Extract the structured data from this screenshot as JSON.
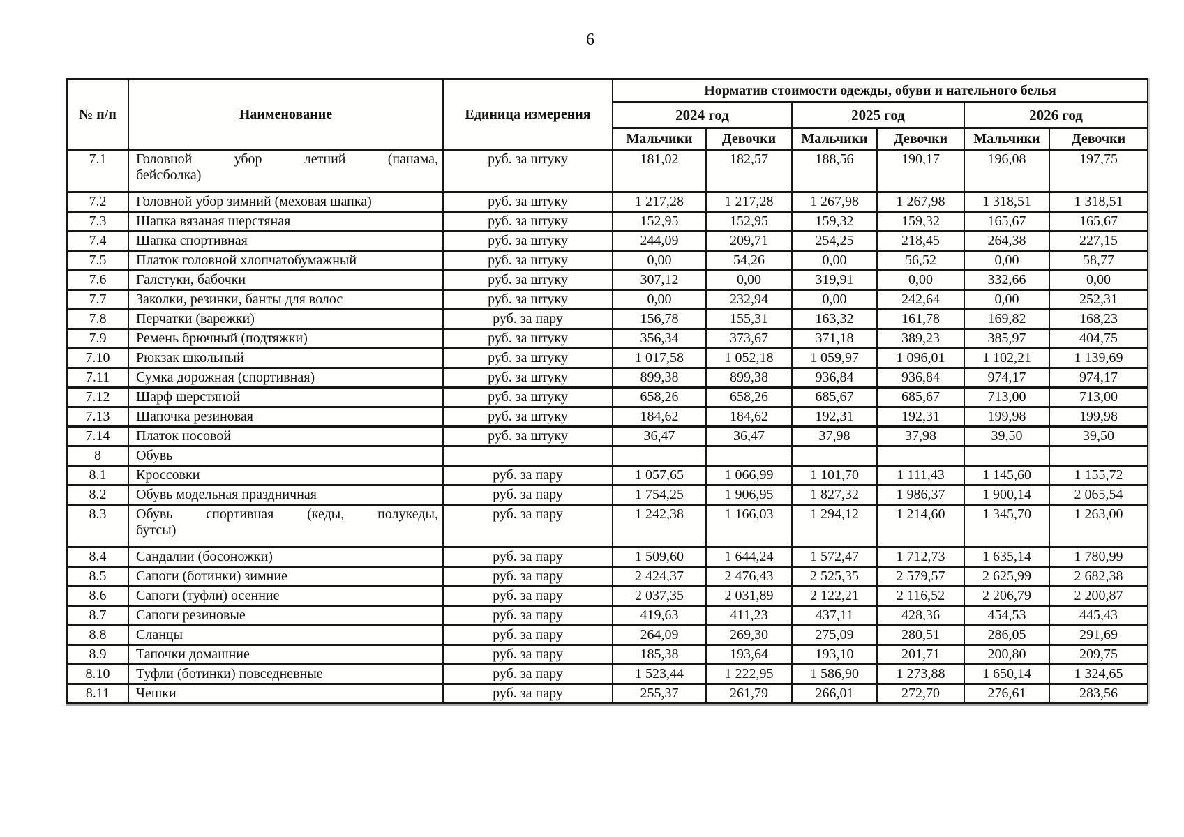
{
  "page": {
    "number": "6"
  },
  "table": {
    "headers": {
      "num": "№ п/п",
      "name": "Наименование",
      "unit": "Единица измерения",
      "norm_group": "Норматив стоимости одежды, обуви и нательного белья",
      "years": [
        "2024 год",
        "2025 год",
        "2026 год"
      ],
      "gender": [
        "Мальчики",
        "Девочки"
      ]
    },
    "units": {
      "per_piece": "руб. за штуку",
      "per_pair": "руб. за пару"
    },
    "rows": [
      {
        "num": "7.1",
        "name": "Головной убор летний (панама,\nбейсболка)",
        "justify": true,
        "unit": "руб. за штуку",
        "values": [
          "181,02",
          "182,57",
          "188,56",
          "190,17",
          "196,08",
          "197,75"
        ]
      },
      {
        "num": "7.2",
        "name": "Головной убор зимний (меховая шапка)",
        "unit": "руб. за штуку",
        "values": [
          "1 217,28",
          "1 217,28",
          "1 267,98",
          "1 267,98",
          "1 318,51",
          "1 318,51"
        ]
      },
      {
        "num": "7.3",
        "name": "Шапка вязаная шерстяная",
        "unit": "руб. за штуку",
        "values": [
          "152,95",
          "152,95",
          "159,32",
          "159,32",
          "165,67",
          "165,67"
        ]
      },
      {
        "num": "7.4",
        "name": "Шапка спортивная",
        "unit": "руб. за штуку",
        "values": [
          "244,09",
          "209,71",
          "254,25",
          "218,45",
          "264,38",
          "227,15"
        ]
      },
      {
        "num": "7.5",
        "name": "Платок головной хлопчатобумажный",
        "unit": "руб. за штуку",
        "values": [
          "0,00",
          "54,26",
          "0,00",
          "56,52",
          "0,00",
          "58,77"
        ]
      },
      {
        "num": "7.6",
        "name": "Галстуки, бабочки",
        "unit": "руб. за штуку",
        "values": [
          "307,12",
          "0,00",
          "319,91",
          "0,00",
          "332,66",
          "0,00"
        ]
      },
      {
        "num": "7.7",
        "name": "Заколки, резинки, банты для волос",
        "unit": "руб. за штуку",
        "values": [
          "0,00",
          "232,94",
          "0,00",
          "242,64",
          "0,00",
          "252,31"
        ]
      },
      {
        "num": "7.8",
        "name": "Перчатки (варежки)",
        "unit": "руб. за пару",
        "values": [
          "156,78",
          "155,31",
          "163,32",
          "161,78",
          "169,82",
          "168,23"
        ]
      },
      {
        "num": "7.9",
        "name": "Ремень брючный (подтяжки)",
        "unit": "руб. за штуку",
        "values": [
          "356,34",
          "373,67",
          "371,18",
          "389,23",
          "385,97",
          "404,75"
        ]
      },
      {
        "num": "7.10",
        "name": "Рюкзак школьный",
        "unit": "руб. за штуку",
        "values": [
          "1 017,58",
          "1 052,18",
          "1 059,97",
          "1 096,01",
          "1 102,21",
          "1 139,69"
        ]
      },
      {
        "num": "7.11",
        "name": "Сумка дорожная (спортивная)",
        "unit": "руб. за штуку",
        "values": [
          "899,38",
          "899,38",
          "936,84",
          "936,84",
          "974,17",
          "974,17"
        ]
      },
      {
        "num": "7.12",
        "name": "Шарф шерстяной",
        "unit": "руб. за штуку",
        "values": [
          "658,26",
          "658,26",
          "685,67",
          "685,67",
          "713,00",
          "713,00"
        ]
      },
      {
        "num": "7.13",
        "name": "Шапочка резиновая",
        "unit": "руб. за штуку",
        "values": [
          "184,62",
          "184,62",
          "192,31",
          "192,31",
          "199,98",
          "199,98"
        ]
      },
      {
        "num": "7.14",
        "name": "Платок носовой",
        "unit": "руб. за штуку",
        "values": [
          "36,47",
          "36,47",
          "37,98",
          "37,98",
          "39,50",
          "39,50"
        ]
      },
      {
        "num": "8",
        "name": "Обувь",
        "section": true,
        "unit": "",
        "values": [
          "",
          "",
          "",
          "",
          "",
          ""
        ]
      },
      {
        "num": "8.1",
        "name": "Кроссовки",
        "unit": "руб. за пару",
        "values": [
          "1 057,65",
          "1 066,99",
          "1 101,70",
          "1 111,43",
          "1 145,60",
          "1 155,72"
        ]
      },
      {
        "num": "8.2",
        "name": "Обувь модельная праздничная",
        "unit": "руб. за пару",
        "values": [
          "1 754,25",
          "1 906,95",
          "1 827,32",
          "1 986,37",
          "1 900,14",
          "2 065,54"
        ]
      },
      {
        "num": "8.3",
        "name": "Обувь спортивная (кеды, полукеды,\nбутсы)",
        "justify": true,
        "unit": "руб. за пару",
        "values": [
          "1 242,38",
          "1 166,03",
          "1 294,12",
          "1 214,60",
          "1 345,70",
          "1 263,00"
        ]
      },
      {
        "num": "8.4",
        "name": "Сандалии (босоножки)",
        "unit": "руб. за пару",
        "values": [
          "1 509,60",
          "1 644,24",
          "1 572,47",
          "1 712,73",
          "1 635,14",
          "1 780,99"
        ]
      },
      {
        "num": "8.5",
        "name": "Сапоги (ботинки) зимние",
        "unit": "руб. за пару",
        "values": [
          "2 424,37",
          "2 476,43",
          "2 525,35",
          "2 579,57",
          "2 625,99",
          "2 682,38"
        ]
      },
      {
        "num": "8.6",
        "name": "Сапоги (туфли) осенние",
        "unit": "руб. за пару",
        "values": [
          "2 037,35",
          "2 031,89",
          "2 122,21",
          "2 116,52",
          "2 206,79",
          "2 200,87"
        ]
      },
      {
        "num": "8.7",
        "name": "Сапоги резиновые",
        "unit": "руб. за пару",
        "values": [
          "419,63",
          "411,23",
          "437,11",
          "428,36",
          "454,53",
          "445,43"
        ]
      },
      {
        "num": "8.8",
        "name": "Сланцы",
        "unit": "руб. за пару",
        "values": [
          "264,09",
          "269,30",
          "275,09",
          "280,51",
          "286,05",
          "291,69"
        ]
      },
      {
        "num": "8.9",
        "name": "Тапочки домашние",
        "unit": "руб. за пару",
        "values": [
          "185,38",
          "193,64",
          "193,10",
          "201,71",
          "200,80",
          "209,75"
        ]
      },
      {
        "num": "8.10",
        "name": "Туфли (ботинки) повседневные",
        "unit": "руб. за пару",
        "values": [
          "1 523,44",
          "1 222,95",
          "1 586,90",
          "1 273,88",
          "1 650,14",
          "1 324,65"
        ]
      },
      {
        "num": "8.11",
        "name": "Чешки",
        "unit": "руб. за пару",
        "values": [
          "255,37",
          "261,79",
          "266,01",
          "272,70",
          "276,61",
          "283,56"
        ]
      }
    ]
  }
}
